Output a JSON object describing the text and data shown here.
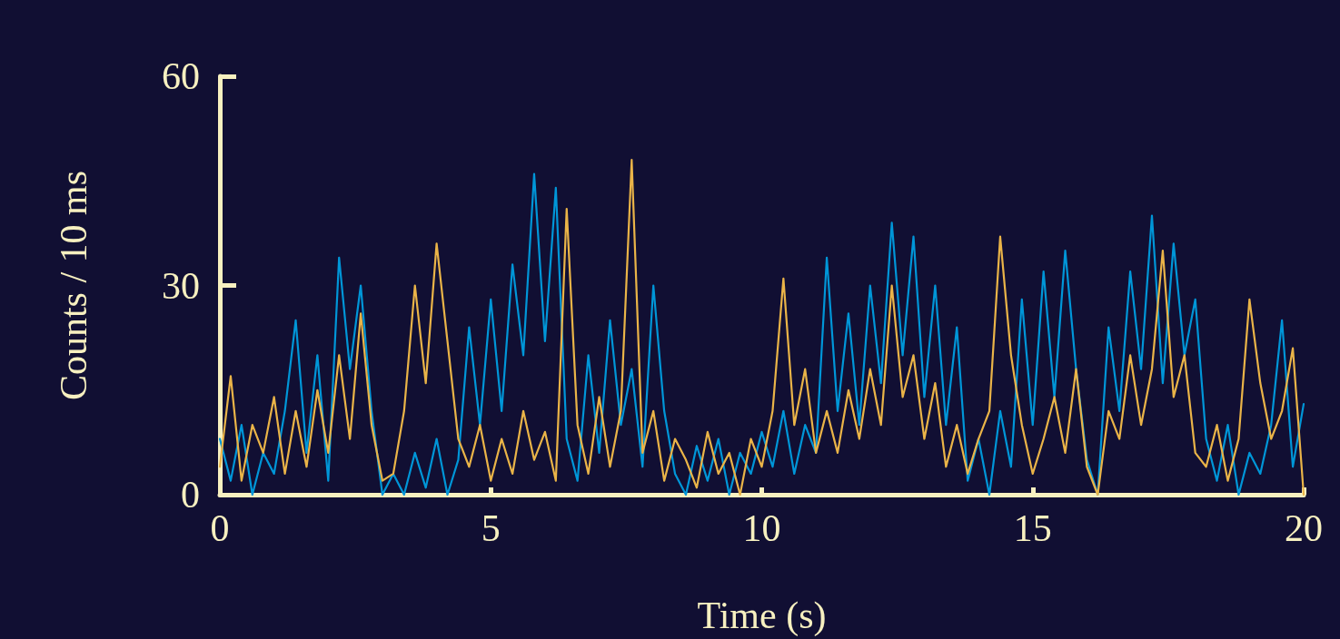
{
  "chart_data": {
    "type": "line",
    "xlabel": "Time (s)",
    "ylabel": "Counts / 10 ms",
    "x": [
      0,
      0.2,
      0.4,
      0.6,
      0.8,
      1,
      1.2,
      1.4,
      1.6,
      1.8,
      2,
      2.2,
      2.4,
      2.6,
      2.8,
      3,
      3.2,
      3.4,
      3.6,
      3.8,
      4,
      4.2,
      4.4,
      4.6,
      4.8,
      5,
      5.2,
      5.4,
      5.6,
      5.8,
      6,
      6.2,
      6.4,
      6.6,
      6.8,
      7,
      7.2,
      7.4,
      7.6,
      7.8,
      8,
      8.2,
      8.4,
      8.6,
      8.8,
      9,
      9.2,
      9.4,
      9.6,
      9.8,
      10,
      10.2,
      10.4,
      10.6,
      10.8,
      11,
      11.2,
      11.4,
      11.6,
      11.8,
      12,
      12.2,
      12.4,
      12.6,
      12.8,
      13,
      13.2,
      13.4,
      13.6,
      13.8,
      14,
      14.2,
      14.4,
      14.6,
      14.8,
      15,
      15.2,
      15.4,
      15.6,
      15.8,
      16,
      16.2,
      16.4,
      16.6,
      16.8,
      17,
      17.2,
      17.4,
      17.6,
      17.8,
      18,
      18.2,
      18.4,
      18.6,
      18.8,
      19,
      19.2,
      19.4,
      19.6,
      19.8,
      20
    ],
    "series": [
      {
        "color": "#0096d8",
        "values": [
          8,
          2,
          10,
          0,
          6,
          3,
          12,
          25,
          6,
          20,
          2,
          34,
          18,
          30,
          12,
          0,
          3,
          0,
          6,
          1,
          8,
          0,
          5,
          24,
          10,
          28,
          12,
          33,
          20,
          46,
          22,
          44,
          8,
          2,
          20,
          6,
          25,
          10,
          18,
          4,
          30,
          12,
          3,
          0,
          7,
          2,
          8,
          0,
          6,
          3,
          9,
          4,
          12,
          3,
          10,
          6,
          34,
          12,
          26,
          10,
          30,
          16,
          39,
          20,
          37,
          14,
          30,
          10,
          24,
          2,
          8,
          0,
          12,
          4,
          28,
          10,
          32,
          14,
          35,
          18,
          5,
          0,
          24,
          12,
          32,
          18,
          40,
          16,
          36,
          20,
          28,
          8,
          2,
          10,
          0,
          6,
          3,
          10,
          25,
          4,
          13
        ]
      },
      {
        "color": "#eab448",
        "values": [
          4,
          17,
          2,
          10,
          6,
          14,
          3,
          12,
          4,
          15,
          6,
          20,
          8,
          26,
          10,
          2,
          3,
          12,
          30,
          16,
          36,
          22,
          8,
          4,
          10,
          2,
          8,
          3,
          12,
          5,
          9,
          2,
          41,
          10,
          3,
          14,
          4,
          12,
          48,
          6,
          12,
          2,
          8,
          5,
          1,
          9,
          3,
          6,
          0,
          8,
          4,
          12,
          31,
          10,
          18,
          6,
          12,
          6,
          15,
          8,
          18,
          10,
          30,
          14,
          20,
          8,
          16,
          4,
          10,
          3,
          8,
          12,
          37,
          20,
          10,
          3,
          8,
          14,
          6,
          18,
          4,
          0,
          12,
          8,
          20,
          10,
          18,
          35,
          14,
          20,
          6,
          4,
          10,
          2,
          8,
          28,
          16,
          8,
          12,
          21,
          0
        ]
      }
    ],
    "xlim": [
      0,
      20
    ],
    "xticks": [
      0,
      5,
      10,
      15,
      20
    ],
    "ylim": [
      0,
      60
    ],
    "yticks": [
      0,
      30,
      60
    ],
    "grid": false
  }
}
